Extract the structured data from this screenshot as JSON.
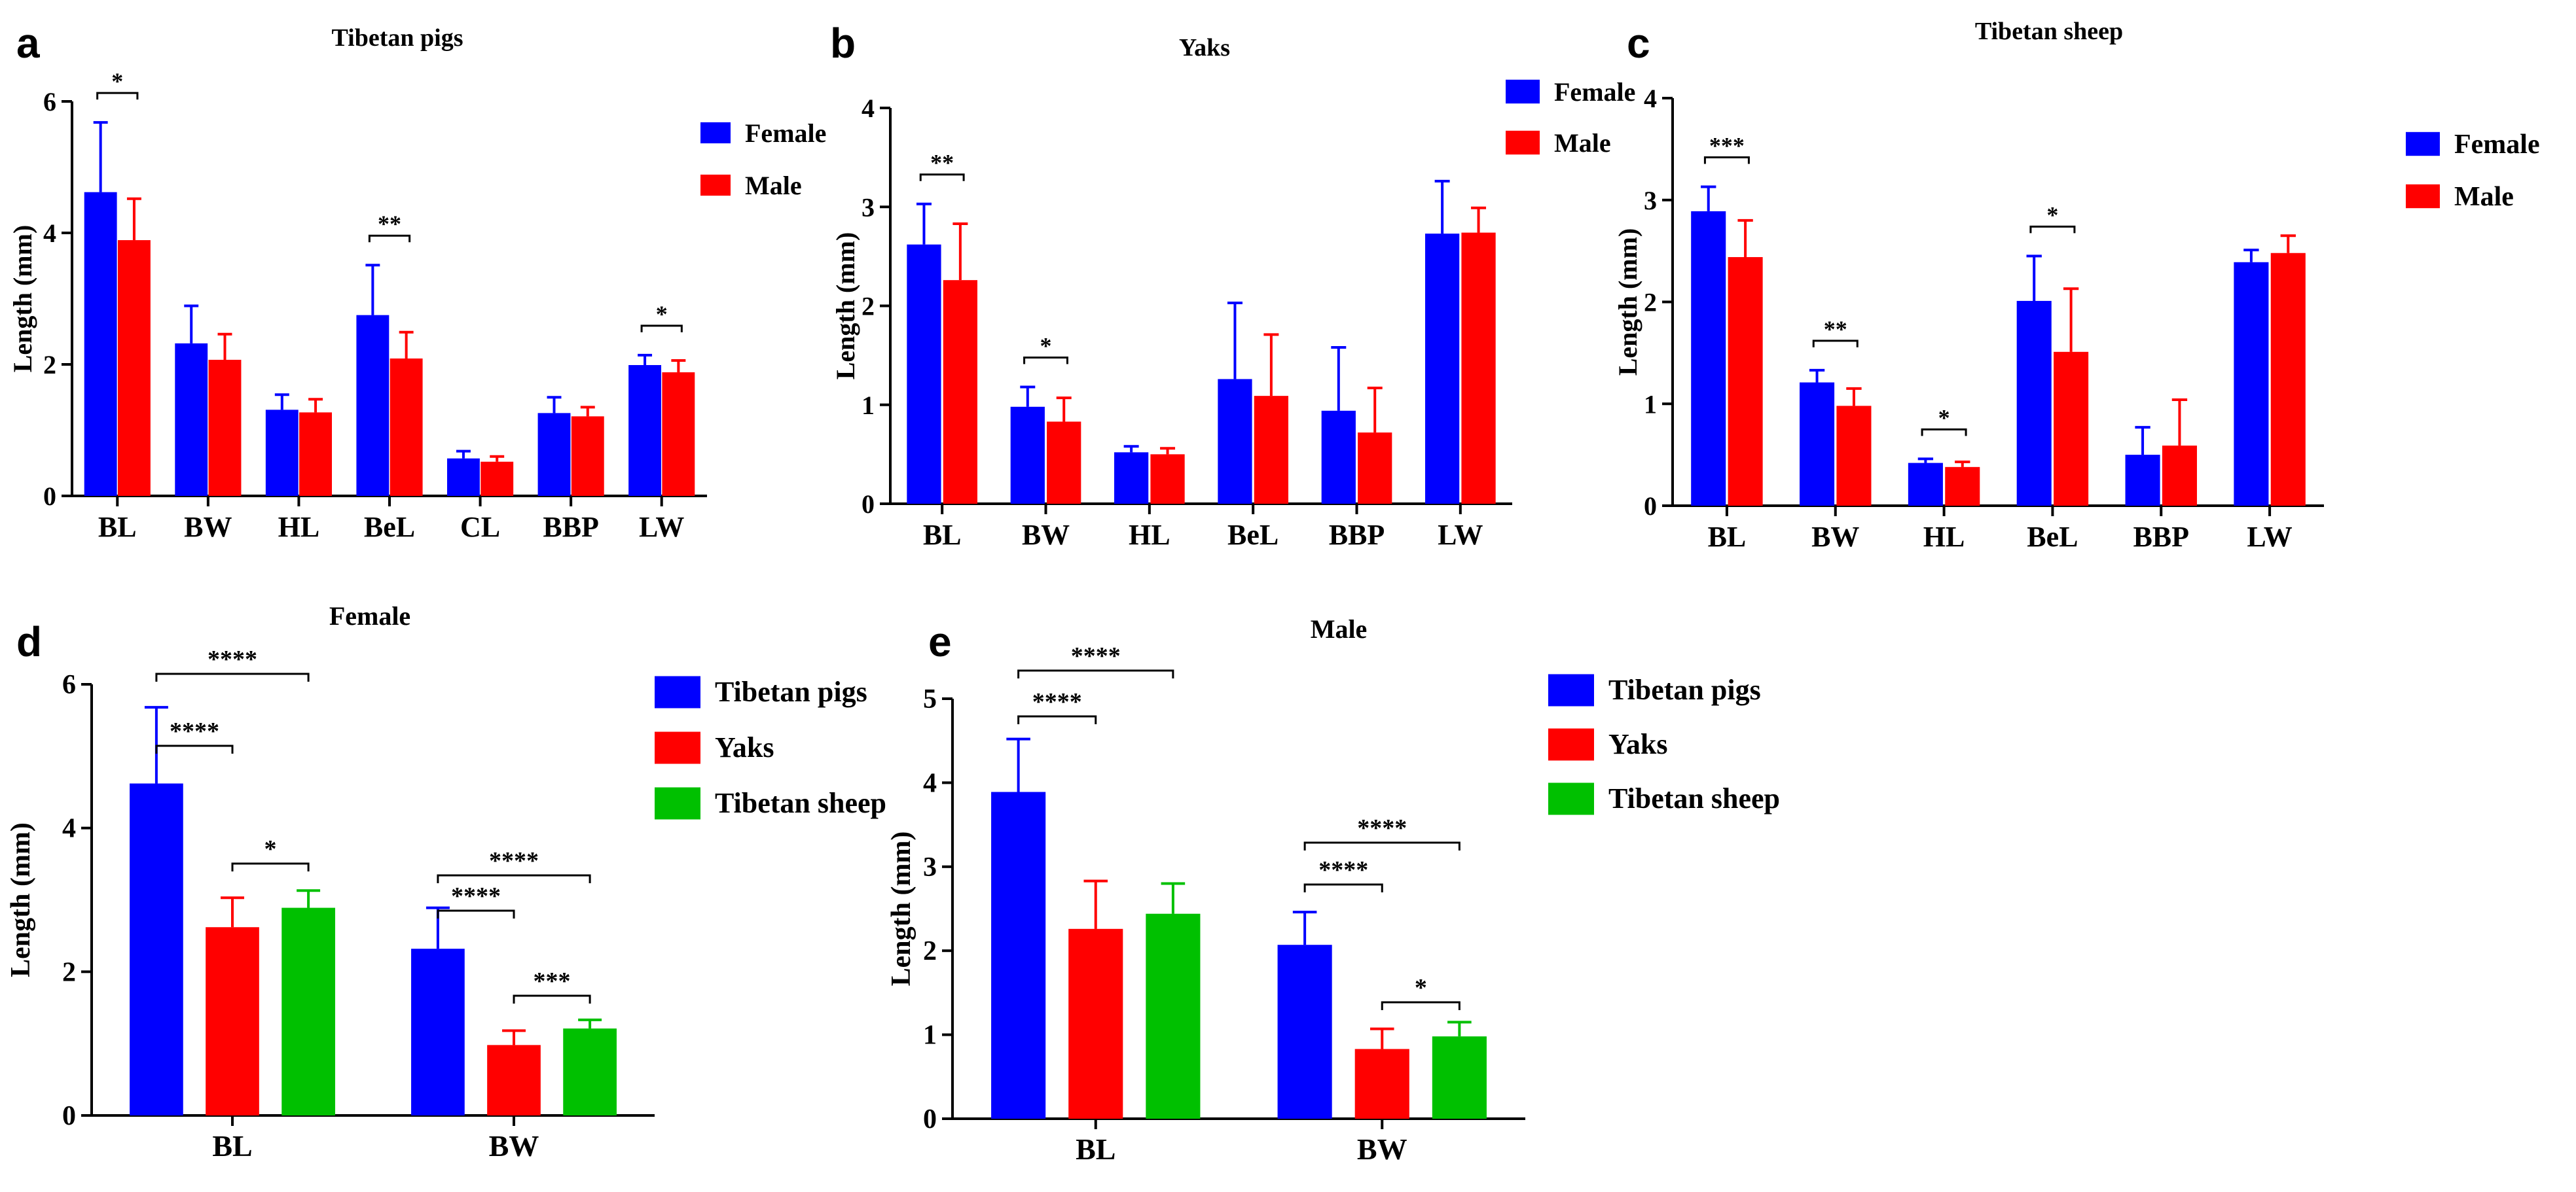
{
  "chart_data": [
    {
      "panel": "a",
      "type": "bar",
      "title": "Tibetan pigs",
      "ylabel": "Length (mm)",
      "ylim": [
        0,
        6
      ],
      "yticks": [
        "0",
        "2",
        "4",
        "6"
      ],
      "categories": [
        "BL",
        "BW",
        "HL",
        "BeL",
        "CL",
        "BBP",
        "LW"
      ],
      "series": [
        {
          "name": "Female",
          "color": "#0000ff",
          "values": [
            4.62,
            2.32,
            1.31,
            2.75,
            0.57,
            1.26,
            1.99
          ],
          "errors": [
            1.06,
            0.57,
            0.23,
            0.76,
            0.11,
            0.24,
            0.15
          ]
        },
        {
          "name": "Male",
          "color": "#ff0000",
          "values": [
            3.89,
            2.07,
            1.27,
            2.09,
            0.52,
            1.21,
            1.88
          ],
          "errors": [
            0.63,
            0.39,
            0.2,
            0.4,
            0.08,
            0.14,
            0.18
          ]
        }
      ],
      "significance": [
        {
          "label": "*",
          "category": "BL"
        },
        {
          "label": "**",
          "category": "BeL"
        },
        {
          "label": "*",
          "category": "LW"
        }
      ]
    },
    {
      "panel": "b",
      "type": "bar",
      "title": "Yaks",
      "ylabel": "Length (mm)",
      "ylim": [
        0,
        4
      ],
      "yticks": [
        "0",
        "1",
        "2",
        "3",
        "4"
      ],
      "categories": [
        "BL",
        "BW",
        "HL",
        "BeL",
        "BBP",
        "LW"
      ],
      "series": [
        {
          "name": "Female",
          "color": "#0000ff",
          "values": [
            2.62,
            0.98,
            0.52,
            1.26,
            0.94,
            2.73
          ],
          "errors": [
            0.41,
            0.2,
            0.06,
            0.77,
            0.64,
            0.53
          ]
        },
        {
          "name": "Male",
          "color": "#ff0000",
          "values": [
            2.26,
            0.83,
            0.5,
            1.09,
            0.72,
            2.74
          ],
          "errors": [
            0.57,
            0.24,
            0.06,
            0.62,
            0.45,
            0.25
          ]
        }
      ],
      "significance": [
        {
          "label": "**",
          "category": "BL"
        },
        {
          "label": "*",
          "category": "BW"
        }
      ]
    },
    {
      "panel": "c",
      "type": "bar",
      "title": "Tibetan sheep",
      "ylabel": "Length (mm)",
      "ylim": [
        0,
        4
      ],
      "yticks": [
        "0",
        "1",
        "2",
        "3",
        "4"
      ],
      "categories": [
        "BL",
        "BW",
        "HL",
        "BeL",
        "BBP",
        "LW"
      ],
      "series": [
        {
          "name": "Female",
          "color": "#0000ff",
          "values": [
            2.89,
            1.21,
            0.42,
            2.01,
            0.5,
            2.39
          ],
          "errors": [
            0.24,
            0.12,
            0.04,
            0.44,
            0.27,
            0.12
          ]
        },
        {
          "name": "Male",
          "color": "#ff0000",
          "values": [
            2.44,
            0.98,
            0.38,
            1.51,
            0.59,
            2.48
          ],
          "errors": [
            0.36,
            0.17,
            0.05,
            0.62,
            0.45,
            0.17
          ]
        }
      ],
      "significance": [
        {
          "label": "***",
          "category": "BL"
        },
        {
          "label": "**",
          "category": "BW"
        },
        {
          "label": "*",
          "category": "HL"
        },
        {
          "label": "*",
          "category": "BeL"
        }
      ]
    },
    {
      "panel": "d",
      "type": "bar",
      "title": "Female",
      "ylabel": "Length (mm)",
      "ylim": [
        0,
        6
      ],
      "yticks": [
        "0",
        "2",
        "4",
        "6"
      ],
      "categories": [
        "BL",
        "BW"
      ],
      "series": [
        {
          "name": "Tibetan pigs",
          "color": "#0000ff",
          "values": [
            4.62,
            2.32
          ],
          "errors": [
            1.06,
            0.57
          ]
        },
        {
          "name": "Yaks",
          "color": "#ff0000",
          "values": [
            2.62,
            0.98
          ],
          "errors": [
            0.41,
            0.2
          ]
        },
        {
          "name": "Tibetan sheep",
          "color": "#00c000",
          "values": [
            2.89,
            1.21
          ],
          "errors": [
            0.24,
            0.12
          ]
        }
      ],
      "significance": [
        {
          "label": "****",
          "category": "BL",
          "from": 0,
          "to": 2,
          "level": 0
        },
        {
          "label": "****",
          "category": "BL",
          "from": 0,
          "to": 1,
          "level": 1
        },
        {
          "label": "*",
          "category": "BL",
          "from": 1,
          "to": 2,
          "level": 2
        },
        {
          "label": "****",
          "category": "BW",
          "from": 0,
          "to": 2,
          "level": 0
        },
        {
          "label": "****",
          "category": "BW",
          "from": 0,
          "to": 1,
          "level": 1
        },
        {
          "label": "***",
          "category": "BW",
          "from": 1,
          "to": 2,
          "level": 2
        }
      ]
    },
    {
      "panel": "e",
      "type": "bar",
      "title": "Male",
      "ylabel": "Length (mm)",
      "ylim": [
        0,
        5
      ],
      "yticks": [
        "0",
        "1",
        "2",
        "3",
        "4",
        "5"
      ],
      "categories": [
        "BL",
        "BW"
      ],
      "series": [
        {
          "name": "Tibetan pigs",
          "color": "#0000ff",
          "values": [
            3.89,
            2.07
          ],
          "errors": [
            0.63,
            0.39
          ]
        },
        {
          "name": "Yaks",
          "color": "#ff0000",
          "values": [
            2.26,
            0.83
          ],
          "errors": [
            0.57,
            0.24
          ]
        },
        {
          "name": "Tibetan sheep",
          "color": "#00c000",
          "values": [
            2.44,
            0.98
          ],
          "errors": [
            0.36,
            0.17
          ]
        }
      ],
      "significance": [
        {
          "label": "****",
          "category": "BL",
          "from": 0,
          "to": 2,
          "level": 0
        },
        {
          "label": "****",
          "category": "BL",
          "from": 0,
          "to": 1,
          "level": 1
        },
        {
          "label": "****",
          "category": "BW",
          "from": 0,
          "to": 2,
          "level": 0
        },
        {
          "label": "****",
          "category": "BW",
          "from": 0,
          "to": 1,
          "level": 1
        },
        {
          "label": "*",
          "category": "BW",
          "from": 1,
          "to": 2,
          "level": 2
        }
      ]
    }
  ]
}
